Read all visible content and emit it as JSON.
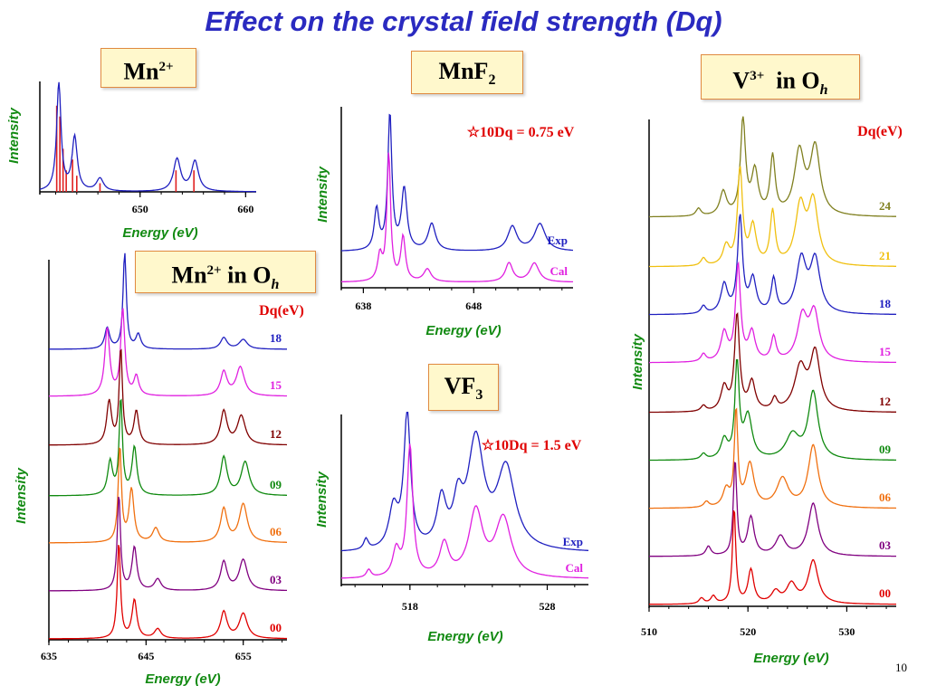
{
  "slide": {
    "title": "Effect on the crystal field strength (Dq)",
    "page_number": "10",
    "boxes": {
      "mn2": {
        "main": "Mn",
        "sup": "2+"
      },
      "mn2oh": {
        "main": "Mn",
        "sup": "2+",
        "tail": " in O",
        "sub": "h"
      },
      "mnf2": {
        "main": "MnF",
        "sub": "2"
      },
      "vf3": {
        "main": "VF",
        "sub": "3"
      },
      "v3oh": {
        "main": "V",
        "sup": "3+",
        "tail": "  in O",
        "sub": "h"
      }
    }
  },
  "chart_data": [
    {
      "id": "mn2-atomic",
      "type": "line",
      "title": "Mn2+",
      "xlabel": "Energy  (eV)",
      "ylabel": "Intensity",
      "xlim": [
        640.5,
        661
      ],
      "x_ticks": [
        650,
        660
      ],
      "series": [
        {
          "name": "",
          "color": "#2020c0",
          "peaks": [
            [
              642.3,
              1.0,
              0.25
            ],
            [
              643.8,
              0.5,
              0.3
            ],
            [
              646.2,
              0.12,
              0.4
            ],
            [
              653.5,
              0.3,
              0.4
            ],
            [
              655.2,
              0.28,
              0.4
            ]
          ]
        }
      ],
      "sticks": {
        "color": "#e02020",
        "lines": [
          [
            642.1,
            0.8
          ],
          [
            642.4,
            0.7
          ],
          [
            642.7,
            0.4
          ],
          [
            643.0,
            0.2
          ],
          [
            643.6,
            0.3
          ],
          [
            644.0,
            0.15
          ],
          [
            646.2,
            0.08
          ],
          [
            653.4,
            0.2
          ],
          [
            655.1,
            0.2
          ]
        ]
      }
    },
    {
      "id": "mn2-oh",
      "type": "line",
      "title": "Mn2+  in Oh",
      "xlabel": "Energy  (eV)",
      "ylabel": "Intensity",
      "xlim": [
        635,
        659.5
      ],
      "x_ticks": [
        635,
        645,
        655
      ],
      "legend_title": "Dq(eV)",
      "series": [
        {
          "name": "18",
          "color": "#2020c0",
          "peaks": [
            [
              641.0,
              0.22,
              0.3
            ],
            [
              642.8,
              1.0,
              0.2
            ],
            [
              644.2,
              0.15,
              0.3
            ],
            [
              653.0,
              0.12,
              0.4
            ],
            [
              655.0,
              0.1,
              0.5
            ]
          ]
        },
        {
          "name": "15",
          "color": "#e020e0",
          "peaks": [
            [
              641.0,
              0.7,
              0.3
            ],
            [
              642.6,
              0.9,
              0.25
            ],
            [
              644.0,
              0.2,
              0.3
            ],
            [
              653.0,
              0.25,
              0.4
            ],
            [
              654.7,
              0.3,
              0.5
            ]
          ]
        },
        {
          "name": "12",
          "color": "#800000",
          "peaks": [
            [
              641.2,
              0.45,
              0.3
            ],
            [
              642.4,
              1.0,
              0.2
            ],
            [
              644.0,
              0.35,
              0.3
            ],
            [
              653.0,
              0.35,
              0.4
            ],
            [
              654.8,
              0.3,
              0.5
            ]
          ]
        },
        {
          "name": "09",
          "color": "#108a10",
          "peaks": [
            [
              641.3,
              0.35,
              0.3
            ],
            [
              642.4,
              1.0,
              0.2
            ],
            [
              643.8,
              0.5,
              0.3
            ],
            [
              653.0,
              0.4,
              0.4
            ],
            [
              655.2,
              0.35,
              0.5
            ]
          ]
        },
        {
          "name": "06",
          "color": "#f07010",
          "peaks": [
            [
              642.3,
              1.0,
              0.2
            ],
            [
              643.5,
              0.55,
              0.3
            ],
            [
              646.0,
              0.15,
              0.4
            ],
            [
              653.0,
              0.35,
              0.4
            ],
            [
              655.0,
              0.4,
              0.5
            ]
          ]
        },
        {
          "name": "03",
          "color": "#800080",
          "peaks": [
            [
              642.2,
              1.0,
              0.2
            ],
            [
              643.8,
              0.45,
              0.3
            ],
            [
              646.2,
              0.12,
              0.4
            ],
            [
              653.0,
              0.3,
              0.4
            ],
            [
              655.0,
              0.32,
              0.5
            ]
          ]
        },
        {
          "name": "00",
          "color": "#e00000",
          "peaks": [
            [
              642.2,
              1.0,
              0.2
            ],
            [
              643.8,
              0.4,
              0.3
            ],
            [
              646.2,
              0.1,
              0.4
            ],
            [
              653.0,
              0.28,
              0.4
            ],
            [
              655.0,
              0.26,
              0.5
            ]
          ]
        }
      ]
    },
    {
      "id": "mnf2",
      "type": "line",
      "title": "MnF2",
      "xlabel": "Energy  (eV)",
      "ylabel": "Intensity",
      "xlim": [
        636,
        657
      ],
      "x_ticks": [
        638,
        648
      ],
      "annotation": "☆10Dq = 0.75 eV",
      "series": [
        {
          "name": "Exp",
          "color": "#2020c0",
          "peaks": [
            [
              639.2,
              0.3,
              0.25
            ],
            [
              640.4,
              1.0,
              0.22
            ],
            [
              641.7,
              0.45,
              0.3
            ],
            [
              644.2,
              0.2,
              0.4
            ],
            [
              651.5,
              0.18,
              0.5
            ],
            [
              654.0,
              0.2,
              0.6
            ]
          ]
        },
        {
          "name": "Cal",
          "color": "#e020e0",
          "peaks": [
            [
              639.5,
              0.2,
              0.25
            ],
            [
              640.3,
              1.0,
              0.2
            ],
            [
              641.6,
              0.35,
              0.25
            ],
            [
              643.8,
              0.1,
              0.4
            ],
            [
              651.2,
              0.15,
              0.4
            ],
            [
              653.5,
              0.15,
              0.5
            ]
          ]
        }
      ]
    },
    {
      "id": "vf3",
      "type": "line",
      "title": "VF3",
      "xlabel": "Energy  (eV)",
      "ylabel": "Intensity",
      "xlim": [
        513,
        531
      ],
      "x_ticks": [
        518,
        528
      ],
      "annotation": "☆10Dq = 1.5 eV",
      "series": [
        {
          "name": "Exp",
          "color": "#2020c0",
          "peaks": [
            [
              514.8,
              0.08,
              0.2
            ],
            [
              516.8,
              0.3,
              0.4
            ],
            [
              517.8,
              1.0,
              0.3
            ],
            [
              520.3,
              0.35,
              0.4
            ],
            [
              521.5,
              0.3,
              0.4
            ],
            [
              522.8,
              0.8,
              0.7
            ],
            [
              525.0,
              0.6,
              0.8
            ]
          ]
        },
        {
          "name": "Cal",
          "color": "#e020e0",
          "peaks": [
            [
              515.0,
              0.06,
              0.2
            ],
            [
              517.0,
              0.2,
              0.3
            ],
            [
              518.0,
              1.0,
              0.25
            ],
            [
              520.5,
              0.25,
              0.4
            ],
            [
              522.8,
              0.5,
              0.6
            ],
            [
              524.8,
              0.45,
              0.7
            ]
          ]
        }
      ]
    },
    {
      "id": "v3-oh",
      "type": "line",
      "title": "V3+  in Oh",
      "xlabel": "Energy  (eV)",
      "ylabel": "Intensity",
      "xlim": [
        510,
        535
      ],
      "x_ticks": [
        510,
        520,
        530
      ],
      "legend_title": "Dq(eV)",
      "series": [
        {
          "name": "24",
          "color": "#808020",
          "peaks": [
            [
              515.0,
              0.08,
              0.3
            ],
            [
              517.5,
              0.25,
              0.4
            ],
            [
              519.5,
              1.0,
              0.3
            ],
            [
              520.7,
              0.45,
              0.4
            ],
            [
              522.5,
              0.6,
              0.3
            ],
            [
              525.2,
              0.65,
              0.6
            ],
            [
              526.8,
              0.7,
              0.6
            ]
          ]
        },
        {
          "name": "21",
          "color": "#f0c010",
          "peaks": [
            [
              515.5,
              0.08,
              0.3
            ],
            [
              517.8,
              0.2,
              0.4
            ],
            [
              519.2,
              1.0,
              0.3
            ],
            [
              520.5,
              0.4,
              0.4
            ],
            [
              522.5,
              0.55,
              0.3
            ],
            [
              525.3,
              0.6,
              0.6
            ],
            [
              526.6,
              0.65,
              0.6
            ]
          ]
        },
        {
          "name": "18",
          "color": "#2020c0",
          "peaks": [
            [
              515.5,
              0.08,
              0.3
            ],
            [
              517.6,
              0.3,
              0.4
            ],
            [
              519.2,
              1.0,
              0.3
            ],
            [
              520.5,
              0.35,
              0.4
            ],
            [
              522.6,
              0.35,
              0.3
            ],
            [
              525.4,
              0.55,
              0.6
            ],
            [
              526.8,
              0.55,
              0.6
            ]
          ]
        },
        {
          "name": "15",
          "color": "#e020e0",
          "peaks": [
            [
              515.5,
              0.08,
              0.3
            ],
            [
              517.6,
              0.3,
              0.4
            ],
            [
              519.0,
              1.0,
              0.3
            ],
            [
              520.4,
              0.3,
              0.4
            ],
            [
              522.6,
              0.25,
              0.3
            ],
            [
              525.5,
              0.45,
              0.6
            ],
            [
              526.7,
              0.5,
              0.6
            ]
          ]
        },
        {
          "name": "12",
          "color": "#800000",
          "peaks": [
            [
              515.5,
              0.06,
              0.3
            ],
            [
              517.6,
              0.25,
              0.4
            ],
            [
              518.9,
              1.0,
              0.3
            ],
            [
              520.4,
              0.3,
              0.4
            ],
            [
              522.7,
              0.12,
              0.3
            ],
            [
              525.3,
              0.45,
              0.7
            ],
            [
              526.8,
              0.6,
              0.6
            ]
          ]
        },
        {
          "name": "09",
          "color": "#108a10",
          "peaks": [
            [
              515.5,
              0.06,
              0.3
            ],
            [
              517.6,
              0.2,
              0.4
            ],
            [
              518.9,
              1.0,
              0.25
            ],
            [
              520.0,
              0.45,
              0.5
            ],
            [
              524.5,
              0.25,
              0.8
            ],
            [
              526.6,
              0.7,
              0.6
            ]
          ]
        },
        {
          "name": "06",
          "color": "#f07010",
          "peaks": [
            [
              515.8,
              0.06,
              0.3
            ],
            [
              517.8,
              0.18,
              0.4
            ],
            [
              518.8,
              1.0,
              0.2
            ],
            [
              520.2,
              0.45,
              0.5
            ],
            [
              523.5,
              0.3,
              0.7
            ],
            [
              526.6,
              0.65,
              0.6
            ]
          ]
        },
        {
          "name": "03",
          "color": "#800080",
          "peaks": [
            [
              516.0,
              0.1,
              0.3
            ],
            [
              518.7,
              1.0,
              0.2
            ],
            [
              520.3,
              0.4,
              0.4
            ],
            [
              523.3,
              0.2,
              0.6
            ],
            [
              526.6,
              0.55,
              0.6
            ]
          ]
        },
        {
          "name": "00",
          "color": "#e00000",
          "peaks": [
            [
              515.3,
              0.06,
              0.3
            ],
            [
              516.5,
              0.08,
              0.3
            ],
            [
              518.6,
              1.0,
              0.2
            ],
            [
              520.3,
              0.35,
              0.35
            ],
            [
              522.8,
              0.12,
              0.5
            ],
            [
              524.4,
              0.2,
              0.6
            ],
            [
              526.6,
              0.45,
              0.6
            ]
          ]
        }
      ]
    }
  ]
}
